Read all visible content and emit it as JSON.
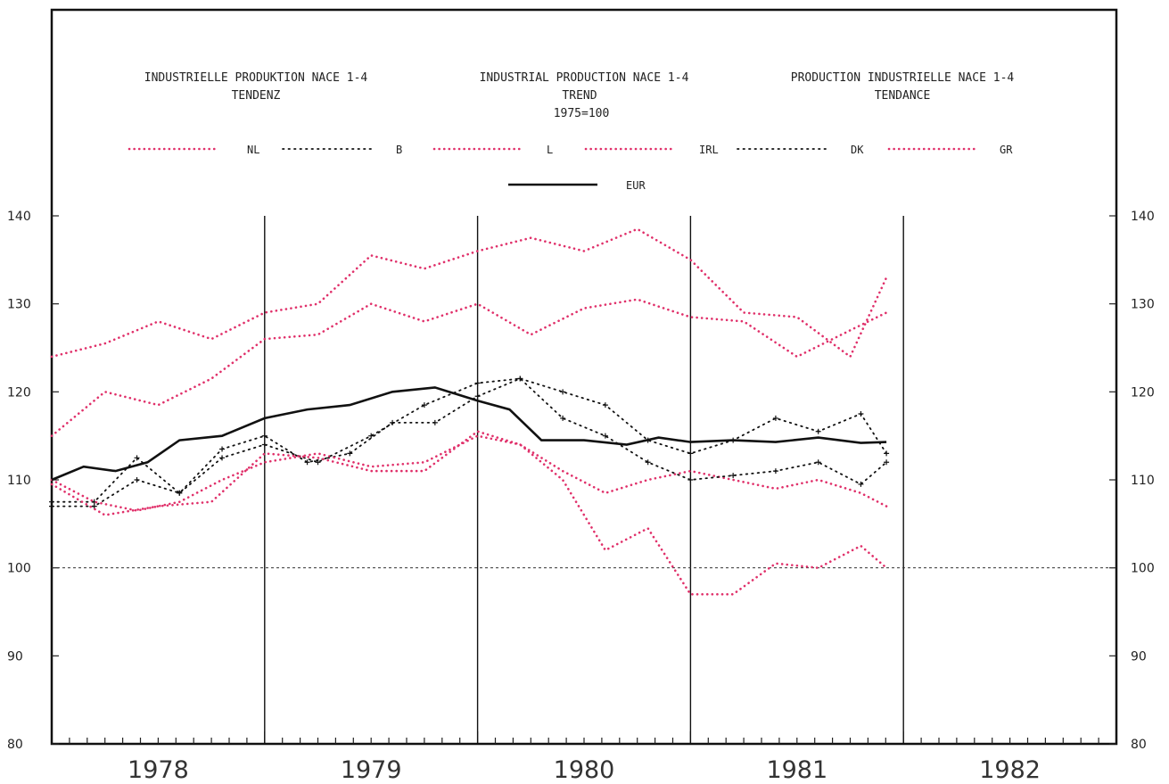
{
  "titles": {
    "de": "INDUSTRIELLE PRODUKTION NACE 1-4",
    "de_sub": "TENDENZ",
    "en": "INDUSTRIAL PRODUCTION NACE 1-4",
    "en_sub": "TREND",
    "en_base": "1975=100",
    "fr": "PRODUCTION INDUSTRIELLE NACE 1-4",
    "fr_sub": "TENDANCE"
  },
  "colors": {
    "pink": "#e0306a",
    "black": "#111111",
    "grid": "#222222"
  },
  "chart_data": {
    "type": "line",
    "ylim": [
      80,
      140
    ],
    "yticks": [
      80,
      90,
      100,
      110,
      120,
      130,
      140
    ],
    "years": [
      "1978",
      "1979",
      "1980",
      "1981",
      "1982"
    ],
    "xlim": [
      1978.0,
      1983.0
    ],
    "reference_line": 100,
    "legend_order": [
      "NL",
      "B",
      "L",
      "IRL",
      "DK",
      "GR",
      "EUR"
    ],
    "series": [
      {
        "name": "NL",
        "color": "pink",
        "style": "dotted",
        "x": [
          1978.0,
          1978.25,
          1978.5,
          1978.75,
          1979.0,
          1979.25,
          1979.5,
          1979.75,
          1980.0,
          1980.25,
          1980.5,
          1980.75,
          1981.0,
          1981.25,
          1981.5,
          1981.75,
          1981.92
        ],
        "y": [
          124,
          125.5,
          128,
          126,
          129,
          130,
          135.5,
          134,
          136,
          137.5,
          136,
          138.5,
          135,
          129,
          128.5,
          124,
          133
        ]
      },
      {
        "name": "B",
        "color": "black",
        "style": "plus",
        "x": [
          1978.0,
          1978.2,
          1978.4,
          1978.6,
          1978.8,
          1979.0,
          1979.2,
          1979.4,
          1979.6,
          1979.8,
          1980.0,
          1980.2,
          1980.4,
          1980.6,
          1980.8,
          1981.0,
          1981.2,
          1981.4,
          1981.6,
          1981.8,
          1981.92
        ],
        "y": [
          107.5,
          107.5,
          112.5,
          108.5,
          113.5,
          115,
          112,
          113,
          116.5,
          116.5,
          119.5,
          121.5,
          120,
          118.5,
          114.5,
          113,
          114.5,
          117,
          115.5,
          117.5,
          113
        ]
      },
      {
        "name": "L",
        "color": "pink",
        "style": "dotted",
        "x": [
          1978.0,
          1978.25,
          1978.5,
          1978.75,
          1979.0,
          1979.25,
          1979.5,
          1979.75,
          1980.0,
          1980.25,
          1980.5,
          1980.75,
          1981.0,
          1981.25,
          1981.5,
          1981.75,
          1981.92
        ],
        "y": [
          115,
          120,
          118.5,
          121.5,
          126,
          126.5,
          130,
          128,
          130,
          126.5,
          129.5,
          130.5,
          128.5,
          128,
          124,
          127,
          129
        ]
      },
      {
        "name": "IRL",
        "color": "pink",
        "style": "dotted",
        "x": [
          1978.0,
          1978.2,
          1978.4,
          1978.6,
          1978.8,
          1979.0,
          1979.25,
          1979.5,
          1979.75,
          1980.0,
          1980.2,
          1980.4,
          1980.6,
          1980.8,
          1981.0,
          1981.2,
          1981.4,
          1981.6,
          1981.8,
          1981.92
        ],
        "y": [
          110,
          107.5,
          106.5,
          107.5,
          110,
          112,
          113,
          111.5,
          112,
          115,
          114,
          111,
          108.5,
          110,
          111,
          110,
          109,
          110,
          108.5,
          107
        ]
      },
      {
        "name": "DK",
        "color": "black",
        "style": "plus",
        "x": [
          1978.0,
          1978.2,
          1978.4,
          1978.6,
          1978.8,
          1979.0,
          1979.25,
          1979.5,
          1979.75,
          1980.0,
          1980.2,
          1980.4,
          1980.6,
          1980.8,
          1981.0,
          1981.2,
          1981.4,
          1981.6,
          1981.8,
          1981.92
        ],
        "y": [
          107,
          107,
          110,
          108.5,
          112.5,
          114,
          112,
          115,
          118.5,
          121,
          121.5,
          117,
          115,
          112,
          110,
          110.5,
          111,
          112,
          109.5,
          112
        ]
      },
      {
        "name": "GR",
        "color": "pink",
        "style": "dotted",
        "x": [
          1978.0,
          1978.25,
          1978.5,
          1978.75,
          1979.0,
          1979.25,
          1979.5,
          1979.75,
          1980.0,
          1980.2,
          1980.4,
          1980.6,
          1980.8,
          1981.0,
          1981.2,
          1981.4,
          1981.6,
          1981.8,
          1981.92
        ],
        "y": [
          109.5,
          106,
          107,
          107.5,
          113,
          112.5,
          111,
          111,
          115.5,
          114,
          110,
          102,
          104.5,
          97,
          97,
          100.5,
          100,
          102.5,
          100
        ]
      },
      {
        "name": "EUR",
        "color": "black",
        "style": "solid",
        "x": [
          1978.0,
          1978.15,
          1978.3,
          1978.45,
          1978.6,
          1978.8,
          1979.0,
          1979.2,
          1979.4,
          1979.6,
          1979.8,
          1980.0,
          1980.15,
          1980.3,
          1980.5,
          1980.7,
          1980.85,
          1981.0,
          1981.2,
          1981.4,
          1981.6,
          1981.8,
          1981.92
        ],
        "y": [
          110,
          111.5,
          111,
          112,
          114.5,
          115,
          117,
          118,
          118.5,
          120,
          120.5,
          119,
          118,
          114.5,
          114.5,
          114,
          114.8,
          114.3,
          114.5,
          114.3,
          114.8,
          114.2,
          114.3
        ]
      }
    ]
  }
}
